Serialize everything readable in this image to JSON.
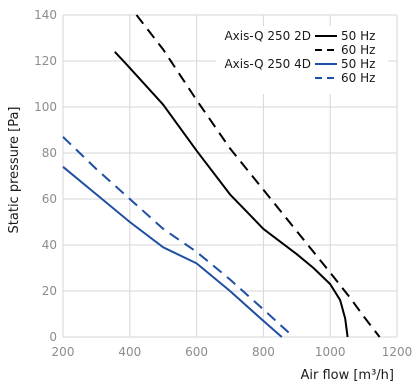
{
  "chart_data": {
    "type": "line",
    "xlabel": "Air flow [m³/h]",
    "ylabel": "Static pressure [Pa]",
    "xlim": [
      200,
      1200
    ],
    "ylim": [
      0,
      140
    ],
    "x_ticks": [
      200,
      400,
      600,
      800,
      1000,
      1200
    ],
    "y_ticks": [
      0,
      20,
      40,
      60,
      80,
      100,
      120,
      140
    ],
    "grid": true,
    "legend_position": "top-right",
    "series": [
      {
        "name": "Axis-Q 250 2D 50 Hz",
        "model": "Axis-Q 250 2D",
        "frequency": "50 Hz",
        "color": "#000000",
        "dash": "solid",
        "points": [
          [
            355,
            124
          ],
          [
            400,
            117
          ],
          [
            500,
            101
          ],
          [
            600,
            81
          ],
          [
            700,
            62
          ],
          [
            800,
            47
          ],
          [
            900,
            36
          ],
          [
            950,
            30
          ],
          [
            1000,
            23
          ],
          [
            1030,
            16
          ],
          [
            1045,
            8
          ],
          [
            1052,
            0
          ]
        ]
      },
      {
        "name": "Axis-Q 250 2D 60 Hz",
        "model": "",
        "frequency": "60 Hz",
        "color": "#000000",
        "dash": "dashed",
        "points": [
          [
            420,
            140
          ],
          [
            500,
            125
          ],
          [
            600,
            103
          ],
          [
            700,
            82
          ],
          [
            800,
            64
          ],
          [
            900,
            46
          ],
          [
            1000,
            28
          ],
          [
            1060,
            17
          ],
          [
            1100,
            9
          ],
          [
            1148,
            0
          ]
        ]
      },
      {
        "name": "Axis-Q 250 4D 50 Hz",
        "model": "Axis-Q 250 4D",
        "frequency": "50 Hz",
        "color": "#1f4fa3",
        "dash": "solid",
        "points": [
          [
            200,
            74
          ],
          [
            300,
            62
          ],
          [
            400,
            50
          ],
          [
            500,
            39
          ],
          [
            600,
            32
          ],
          [
            700,
            20
          ],
          [
            800,
            7
          ],
          [
            855,
            0
          ]
        ]
      },
      {
        "name": "Axis-Q 250 4D 60 Hz",
        "model": "",
        "frequency": "60 Hz",
        "color": "#1f4fa3",
        "dash": "dashed",
        "points": [
          [
            200,
            87
          ],
          [
            300,
            73
          ],
          [
            400,
            60
          ],
          [
            500,
            47
          ],
          [
            600,
            37
          ],
          [
            700,
            25
          ],
          [
            800,
            12
          ],
          [
            890,
            0
          ]
        ]
      }
    ]
  }
}
